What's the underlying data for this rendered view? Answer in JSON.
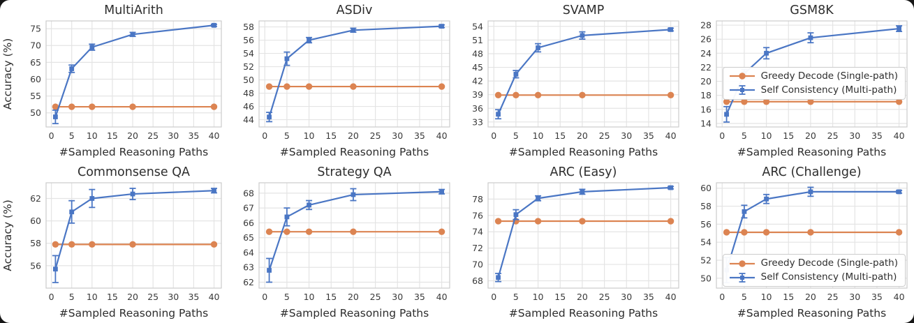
{
  "figure": {
    "background": "#ffffff",
    "accent_blue": "#4a76c4",
    "accent_orange": "#dc8452",
    "grid_color": "#e4e4e4",
    "axis_border_color": "#cccccc",
    "text_color": "#2d2d2d",
    "tick_color": "#3a3a3a"
  },
  "legend": {
    "items": [
      {
        "label": "Greedy Decode (Single-path)",
        "marker": "circle-line",
        "color": "#dc8452"
      },
      {
        "label": "Self Consistency (Multi-path)",
        "marker": "errorbar-line",
        "color": "#4a76c4"
      }
    ]
  },
  "chart_data": [
    {
      "type": "line",
      "title": "MultiArith",
      "xlabel": "#Sampled Reasoning Paths",
      "ylabel": "Accuracy (%)",
      "x": [
        1,
        5,
        10,
        20,
        40
      ],
      "xticks": [
        0,
        5,
        10,
        15,
        20,
        25,
        30,
        35,
        40
      ],
      "xlim": [
        -1.3,
        41.8
      ],
      "yticks": [
        50,
        55,
        60,
        65,
        70,
        75
      ],
      "ylim": [
        45.8,
        77.3
      ],
      "grid": true,
      "legend": null,
      "series": [
        {
          "name": "Greedy Decode (Single-path)",
          "style": "greedy",
          "color": "#dc8452",
          "values": [
            51.8,
            51.8,
            51.8,
            51.8,
            51.8
          ]
        },
        {
          "name": "Self Consistency (Multi-path)",
          "style": "self_consistency",
          "color": "#4a76c4",
          "values": [
            48.8,
            63.1,
            69.5,
            73.3,
            76.0
          ],
          "err": [
            2.0,
            1.1,
            0.9,
            0.6,
            0.3
          ]
        }
      ]
    },
    {
      "type": "line",
      "title": "ASDiv",
      "xlabel": "#Sampled Reasoning Paths",
      "ylabel": "",
      "x": [
        1,
        5,
        10,
        20,
        40
      ],
      "xticks": [
        0,
        5,
        10,
        15,
        20,
        25,
        30,
        35,
        40
      ],
      "xlim": [
        -1.3,
        41.8
      ],
      "yticks": [
        44,
        46,
        48,
        50,
        52,
        54,
        56,
        58
      ],
      "ylim": [
        42.9,
        58.9
      ],
      "grid": true,
      "legend": null,
      "series": [
        {
          "name": "Greedy Decode (Single-path)",
          "style": "greedy",
          "color": "#dc8452",
          "values": [
            49.0,
            49.0,
            49.0,
            49.0,
            49.0
          ]
        },
        {
          "name": "Self Consistency (Multi-path)",
          "style": "self_consistency",
          "color": "#4a76c4",
          "values": [
            44.4,
            53.2,
            56.0,
            57.5,
            58.1
          ],
          "err": [
            0.7,
            1.0,
            0.4,
            0.3,
            0.2
          ]
        }
      ]
    },
    {
      "type": "line",
      "title": "SVAMP",
      "xlabel": "#Sampled Reasoning Paths",
      "ylabel": "",
      "x": [
        1,
        5,
        10,
        20,
        40
      ],
      "xticks": [
        0,
        5,
        10,
        15,
        20,
        25,
        30,
        35,
        40
      ],
      "xlim": [
        -1.3,
        41.8
      ],
      "yticks": [
        33,
        36,
        39,
        42,
        45,
        48,
        51,
        54
      ],
      "ylim": [
        31.9,
        55.2
      ],
      "grid": true,
      "legend": null,
      "series": [
        {
          "name": "Greedy Decode (Single-path)",
          "style": "greedy",
          "color": "#dc8452",
          "values": [
            38.9,
            38.9,
            38.9,
            38.9,
            38.9
          ]
        },
        {
          "name": "Self Consistency (Multi-path)",
          "style": "self_consistency",
          "color": "#4a76c4",
          "values": [
            34.7,
            43.5,
            49.3,
            52.0,
            53.3
          ],
          "err": [
            1.0,
            0.8,
            0.9,
            0.8,
            0.3
          ]
        }
      ]
    },
    {
      "type": "line",
      "title": "GSM8K",
      "xlabel": "#Sampled Reasoning Paths",
      "ylabel": "",
      "x": [
        1,
        5,
        10,
        20,
        40
      ],
      "xticks": [
        0,
        5,
        10,
        15,
        20,
        25,
        30,
        35,
        40
      ],
      "xlim": [
        -1.3,
        41.8
      ],
      "yticks": [
        14,
        16,
        18,
        20,
        22,
        24,
        26,
        28
      ],
      "ylim": [
        13.5,
        28.6
      ],
      "grid": true,
      "legend": {
        "position": "center-right"
      },
      "series": [
        {
          "name": "Greedy Decode (Single-path)",
          "style": "greedy",
          "color": "#dc8452",
          "values": [
            17.1,
            17.1,
            17.1,
            17.1,
            17.1
          ]
        },
        {
          "name": "Self Consistency (Multi-path)",
          "style": "self_consistency",
          "color": "#4a76c4",
          "values": [
            15.3,
            21.1,
            24.0,
            26.2,
            27.5
          ],
          "err": [
            1.1,
            0.6,
            0.8,
            0.7,
            0.4
          ]
        }
      ]
    },
    {
      "type": "line",
      "title": "Commonsense QA",
      "xlabel": "#Sampled Reasoning Paths",
      "ylabel": "Accuracy (%)",
      "x": [
        1,
        5,
        10,
        20,
        40
      ],
      "xticks": [
        0,
        5,
        10,
        15,
        20,
        25,
        30,
        35,
        40
      ],
      "xlim": [
        -1.3,
        41.8
      ],
      "yticks": [
        56,
        58,
        60,
        62
      ],
      "ylim": [
        54.0,
        63.4
      ],
      "grid": true,
      "legend": null,
      "series": [
        {
          "name": "Greedy Decode (Single-path)",
          "style": "greedy",
          "color": "#dc8452",
          "values": [
            57.9,
            57.9,
            57.9,
            57.9,
            57.9
          ]
        },
        {
          "name": "Self Consistency (Multi-path)",
          "style": "self_consistency",
          "color": "#4a76c4",
          "values": [
            55.7,
            60.8,
            62.0,
            62.4,
            62.7
          ],
          "err": [
            1.2,
            1.0,
            0.8,
            0.5,
            0.2
          ]
        }
      ]
    },
    {
      "type": "line",
      "title": "Strategy QA",
      "xlabel": "#Sampled Reasoning Paths",
      "ylabel": "",
      "x": [
        1,
        5,
        10,
        20,
        40
      ],
      "xticks": [
        0,
        5,
        10,
        15,
        20,
        25,
        30,
        35,
        40
      ],
      "xlim": [
        -1.3,
        41.8
      ],
      "yticks": [
        62,
        63,
        64,
        65,
        66,
        67,
        68
      ],
      "ylim": [
        61.6,
        68.7
      ],
      "grid": true,
      "legend": null,
      "series": [
        {
          "name": "Greedy Decode (Single-path)",
          "style": "greedy",
          "color": "#dc8452",
          "values": [
            65.4,
            65.4,
            65.4,
            65.4,
            65.4
          ]
        },
        {
          "name": "Self Consistency (Multi-path)",
          "style": "self_consistency",
          "color": "#4a76c4",
          "values": [
            62.8,
            66.4,
            67.2,
            67.9,
            68.1
          ],
          "err": [
            0.8,
            0.6,
            0.3,
            0.4,
            0.15
          ]
        }
      ]
    },
    {
      "type": "line",
      "title": "ARC (Easy)",
      "xlabel": "#Sampled Reasoning Paths",
      "ylabel": "",
      "x": [
        1,
        5,
        10,
        20,
        40
      ],
      "xticks": [
        0,
        5,
        10,
        15,
        20,
        25,
        30,
        35,
        40
      ],
      "xlim": [
        -1.3,
        41.8
      ],
      "yticks": [
        68,
        70,
        72,
        74,
        76,
        78
      ],
      "ylim": [
        67.1,
        80.0
      ],
      "grid": true,
      "legend": null,
      "series": [
        {
          "name": "Greedy Decode (Single-path)",
          "style": "greedy",
          "color": "#dc8452",
          "values": [
            75.3,
            75.3,
            75.3,
            75.3,
            75.3
          ]
        },
        {
          "name": "Self Consistency (Multi-path)",
          "style": "self_consistency",
          "color": "#4a76c4",
          "values": [
            68.4,
            76.1,
            78.1,
            78.9,
            79.4
          ],
          "err": [
            0.5,
            0.6,
            0.3,
            0.3,
            0.15
          ]
        }
      ]
    },
    {
      "type": "line",
      "title": "ARC (Challenge)",
      "xlabel": "#Sampled Reasoning Paths",
      "ylabel": "",
      "x": [
        1,
        5,
        10,
        20,
        40
      ],
      "xticks": [
        0,
        5,
        10,
        15,
        20,
        25,
        30,
        35,
        40
      ],
      "xlim": [
        -1.3,
        41.8
      ],
      "yticks": [
        50,
        52,
        54,
        56,
        58,
        60
      ],
      "ylim": [
        48.9,
        60.6
      ],
      "grid": true,
      "legend": {
        "position": "bottom-right"
      },
      "series": [
        {
          "name": "Greedy Decode (Single-path)",
          "style": "greedy",
          "color": "#dc8452",
          "values": [
            55.1,
            55.1,
            55.1,
            55.1,
            55.1
          ]
        },
        {
          "name": "Self Consistency (Multi-path)",
          "style": "self_consistency",
          "color": "#4a76c4",
          "values": [
            50.9,
            57.4,
            58.8,
            59.6,
            59.6
          ],
          "err": [
            1.4,
            0.7,
            0.5,
            0.5,
            0.15
          ]
        }
      ]
    }
  ]
}
